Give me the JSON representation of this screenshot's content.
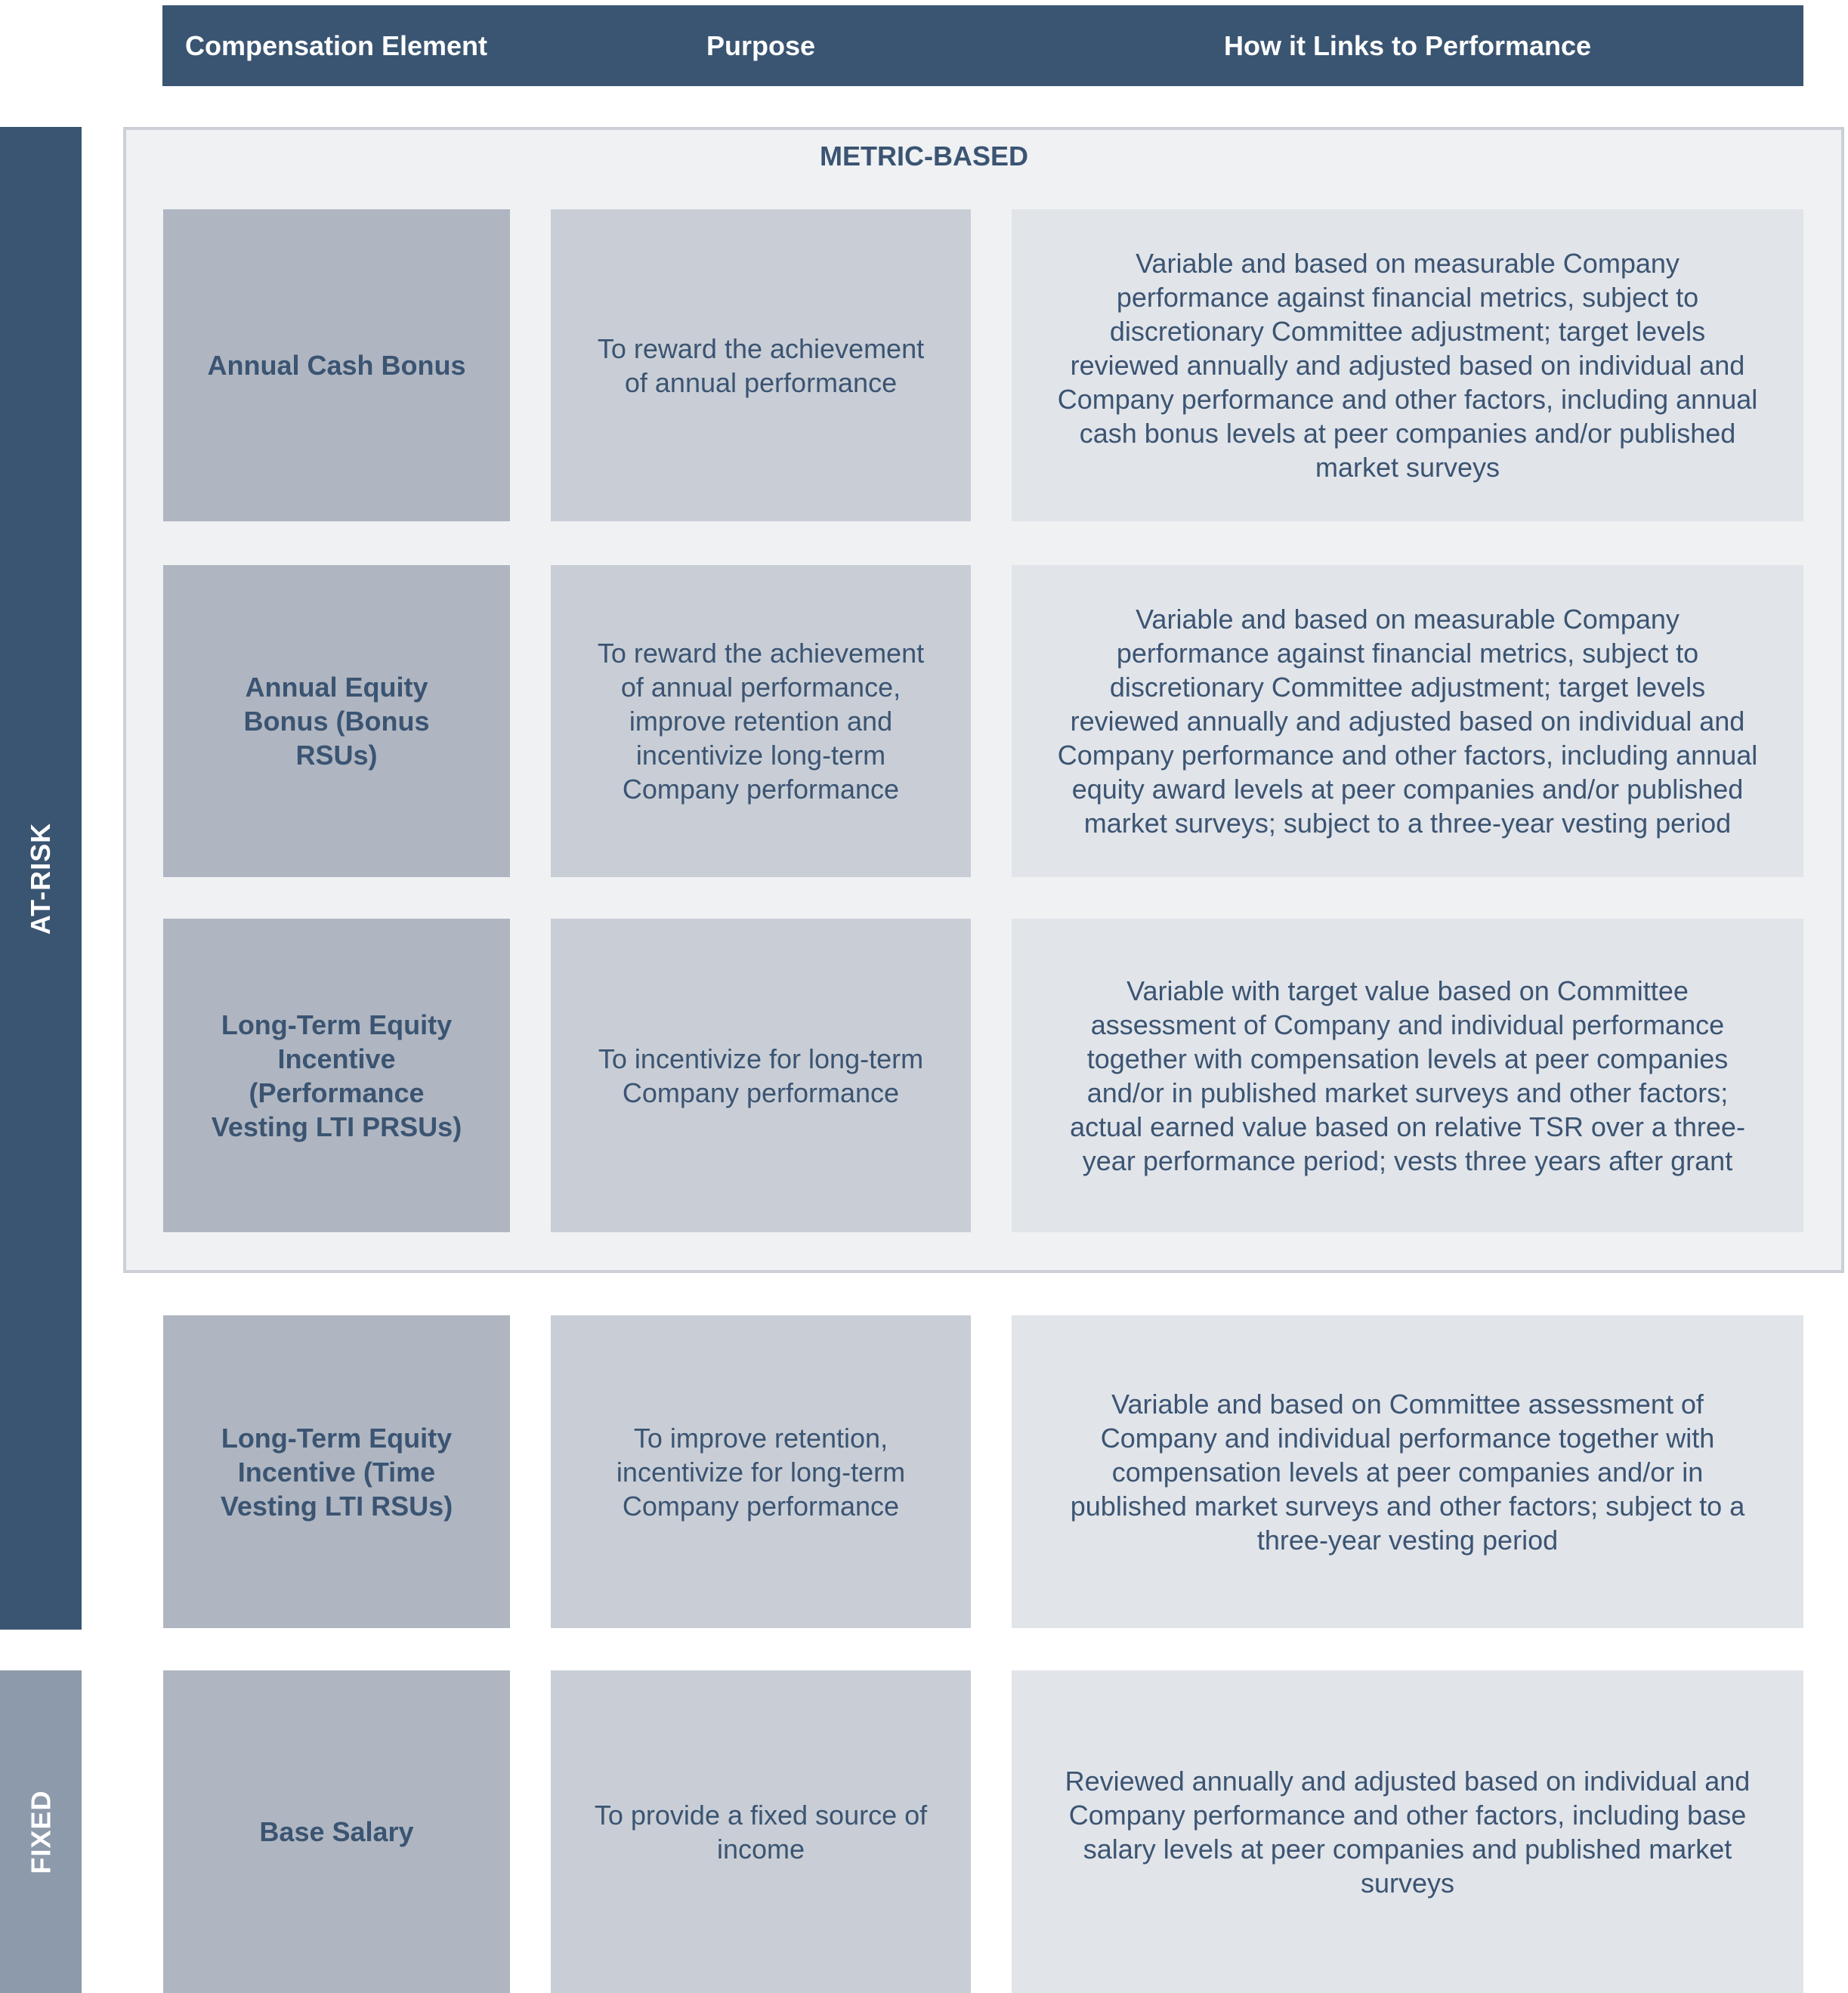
{
  "header": {
    "columns": [
      "Compensation Element",
      "Purpose",
      "How it Links to Performance"
    ]
  },
  "groups": {
    "at_risk": "AT-RISK",
    "fixed": "FIXED",
    "metric_based": "METRIC-BASED"
  },
  "rows": [
    {
      "element": "Annual Cash Bonus",
      "purpose": "To reward the achievement of annual performance",
      "link": "Variable and based on measurable Company performance against financial metrics, subject to discretionary Committee adjustment; target levels reviewed annually and adjusted based on individual and Company performance and other factors, including annual cash bonus levels at peer companies and/or published market surveys"
    },
    {
      "element": "Annual Equity Bonus (Bonus RSUs)",
      "purpose": "To reward the achievement of annual performance, improve retention and incentivize long-term Company performance",
      "link": "Variable and based on measurable Company performance against financial metrics, subject to discretionary Committee adjustment; target levels reviewed annually and adjusted based on individual and Company performance and other factors, including annual equity award levels at peer companies and/or published market surveys; subject to a three-year vesting period"
    },
    {
      "element": "Long-Term Equity Incentive (Performance Vesting LTI PRSUs)",
      "purpose": "To incentivize for long-term Company performance",
      "link": "Variable with target value based on Committee assessment of Company and individual performance together with compensation levels at peer companies and/or in published market surveys and other factors; actual earned value based on relative TSR over a three-year performance period; vests three years after grant"
    },
    {
      "element": "Long-Term Equity Incentive (Time Vesting LTI RSUs)",
      "purpose": "To improve retention, incentivize for long-term Company performance",
      "link": "Variable and based on Committee assessment of Company and individual performance together with compensation levels at peer companies and/or in published market surveys and other factors; subject to a three-year vesting period"
    },
    {
      "element": "Base Salary",
      "purpose": "To provide a fixed source of income",
      "link": "Reviewed annually and adjusted based on individual and Company performance and other factors, including base salary levels at peer companies and published market surveys"
    }
  ],
  "colors": {
    "header": "#3a5572",
    "at_risk": "#3a5572",
    "fixed": "#8d9aab",
    "element_cell": "#afb6c1",
    "purpose_cell": "#c9ced6",
    "link_cell": "#e1e4e9",
    "text": "#3b5472"
  }
}
